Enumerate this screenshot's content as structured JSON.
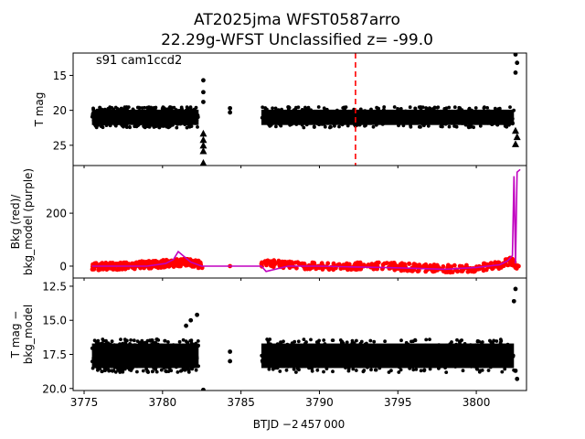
{
  "figure": {
    "title_line1": "AT2025jma  WFST0587arro",
    "title_line2": "22.29g-WFST Unclassified z= -99.0",
    "annotation": "s91 cam1ccd2",
    "xlabel": "BTJD −2 457 000",
    "xticks": [
      "3775",
      "3780",
      "3785",
      "3790",
      "3795",
      "3800"
    ]
  },
  "chart_data": [
    {
      "type": "scatter",
      "panel": "top",
      "ylabel": "T mag",
      "y_inverted": true,
      "xlim": [
        3774.3,
        3803.2
      ],
      "ylim": [
        27.9,
        11.8
      ],
      "yticks": [
        "15",
        "20",
        "25"
      ],
      "marker_color": "#000000",
      "vline": {
        "x": 3792.3,
        "color": "#ff0000",
        "style": "dashed"
      },
      "segments": [
        {
          "x": [
            3775.5,
            3782.3
          ],
          "y_center": 21.0,
          "y_spread": 1.1
        },
        {
          "x": [
            3786.3,
            3802.4
          ],
          "y_center": 21.0,
          "y_spread": 1.1
        }
      ],
      "outliers": [
        {
          "x": 3782.6,
          "y": 15.7
        },
        {
          "x": 3782.6,
          "y": 17.4
        },
        {
          "x": 3782.6,
          "y": 18.8
        },
        {
          "x": 3784.3,
          "y": 19.7
        },
        {
          "x": 3784.3,
          "y": 20.3
        },
        {
          "x": 3802.5,
          "y": 12.0
        },
        {
          "x": 3802.6,
          "y": 13.2
        },
        {
          "x": 3802.5,
          "y": 14.6
        }
      ],
      "upper_limits": [
        {
          "x": 3782.6,
          "y": 23.3
        },
        {
          "x": 3782.6,
          "y": 24.2
        },
        {
          "x": 3782.6,
          "y": 25.0
        },
        {
          "x": 3782.6,
          "y": 25.8
        },
        {
          "x": 3782.6,
          "y": 27.5
        },
        {
          "x": 3802.5,
          "y": 22.9
        },
        {
          "x": 3802.6,
          "y": 23.8
        },
        {
          "x": 3802.5,
          "y": 24.8
        }
      ]
    },
    {
      "type": "line",
      "panel": "middle",
      "ylabel": "Bkg (red)/\nbkg_model (purple)",
      "xlim": [
        3774.3,
        3803.2
      ],
      "ylim": [
        -45,
        380
      ],
      "yticks": [
        "0",
        "200"
      ],
      "series": [
        {
          "color": "#ff0000",
          "x": [
            3775.5,
            3777,
            3779,
            3780.5,
            3781.5,
            3782.5,
            3784.3,
            3786.5,
            3788,
            3790,
            3792,
            3794,
            3796,
            3798,
            3800,
            3801.5,
            3802.3,
            3802.5,
            3802.7
          ],
          "y": [
            0,
            -2,
            5,
            10,
            15,
            5,
            0,
            10,
            5,
            -2,
            0,
            0,
            -5,
            -10,
            -8,
            5,
            20,
            0,
            10
          ]
        },
        {
          "color": "#c000c0",
          "x": [
            3775.5,
            3777,
            3779,
            3780.2,
            3780.7,
            3781.0,
            3781.8,
            3782.5,
            3784,
            3786.3,
            3786.6,
            3788,
            3790,
            3792,
            3794,
            3796,
            3798,
            3800,
            3801.5,
            3802.0,
            3802.3,
            3802.4,
            3802.5,
            3802.6,
            3802.8
          ],
          "y": [
            0,
            0,
            0,
            10,
            25,
            55,
            15,
            0,
            0,
            0,
            -20,
            0,
            0,
            -3,
            -5,
            -8,
            -12,
            -5,
            5,
            20,
            40,
            340,
            10,
            355,
            365
          ]
        }
      ]
    },
    {
      "type": "scatter",
      "panel": "bottom",
      "ylabel": "T mag −\nbkg_model",
      "y_inverted": true,
      "xlim": [
        3774.3,
        3803.2
      ],
      "ylim": [
        20.15,
        11.9
      ],
      "yticks": [
        "12.5",
        "15.0",
        "17.5",
        "20.0"
      ],
      "marker_color": "#000000",
      "segments": [
        {
          "x": [
            3775.5,
            3782.3
          ],
          "y_center": 17.6,
          "y_spread": 0.9
        },
        {
          "x": [
            3786.3,
            3802.4
          ],
          "y_center": 17.6,
          "y_spread": 0.9
        }
      ],
      "outliers": [
        {
          "x": 3781.5,
          "y": 15.4
        },
        {
          "x": 3781.8,
          "y": 15.0
        },
        {
          "x": 3782.2,
          "y": 14.6
        },
        {
          "x": 3782.6,
          "y": 20.1
        },
        {
          "x": 3784.3,
          "y": 17.3
        },
        {
          "x": 3784.3,
          "y": 18.0
        },
        {
          "x": 3802.5,
          "y": 12.7
        },
        {
          "x": 3802.4,
          "y": 13.6
        },
        {
          "x": 3802.6,
          "y": 19.3
        },
        {
          "x": 3802.5,
          "y": 18.7
        }
      ]
    }
  ]
}
